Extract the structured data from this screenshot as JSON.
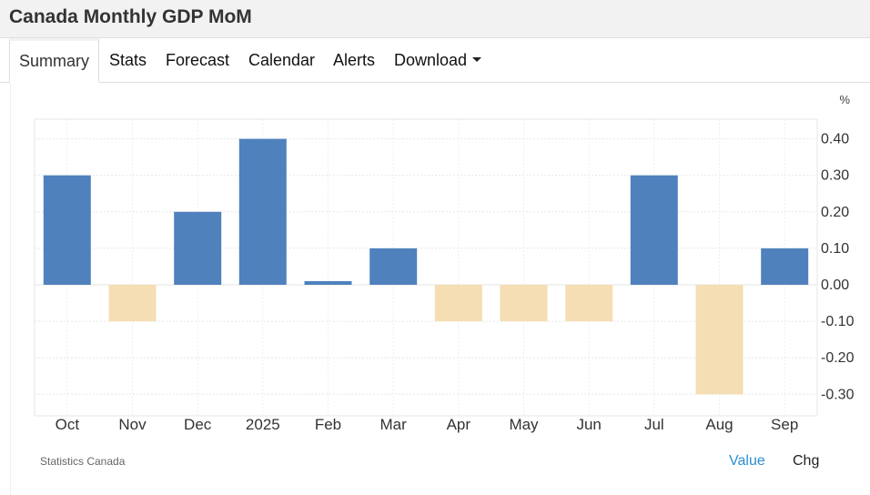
{
  "header": {
    "title": "Canada Monthly GDP MoM"
  },
  "tabs": [
    {
      "label": "Summary",
      "active": true
    },
    {
      "label": "Stats"
    },
    {
      "label": "Forecast"
    },
    {
      "label": "Calendar"
    },
    {
      "label": "Alerts"
    },
    {
      "label": "Download",
      "has_dropdown": true
    }
  ],
  "chart_data": {
    "type": "bar",
    "unit": "%",
    "categories": [
      "Oct",
      "Nov",
      "Dec",
      "2025",
      "Feb",
      "Mar",
      "Apr",
      "May",
      "Jun",
      "Jul",
      "Aug",
      "Sep"
    ],
    "values": [
      0.3,
      -0.1,
      0.2,
      0.4,
      0.01,
      0.1,
      -0.1,
      -0.1,
      -0.1,
      0.3,
      -0.3,
      0.1
    ],
    "ylim": [
      -0.35,
      0.45
    ],
    "y_ticks": [
      "0.40",
      "0.30",
      "0.20",
      "0.10",
      "0.00",
      "-0.10",
      "-0.20",
      "-0.30"
    ],
    "y_tick_values": [
      0.4,
      0.3,
      0.2,
      0.1,
      0.0,
      -0.1,
      -0.2,
      -0.3
    ],
    "axis_position": "right",
    "grid": true,
    "colors": {
      "positive": "#4f81bd",
      "negative": "#f5deb3",
      "grid": "#e6e6e6"
    }
  },
  "footer": {
    "source": "Statistics Canada",
    "value_link": "Value",
    "chg_link": "Chg"
  }
}
